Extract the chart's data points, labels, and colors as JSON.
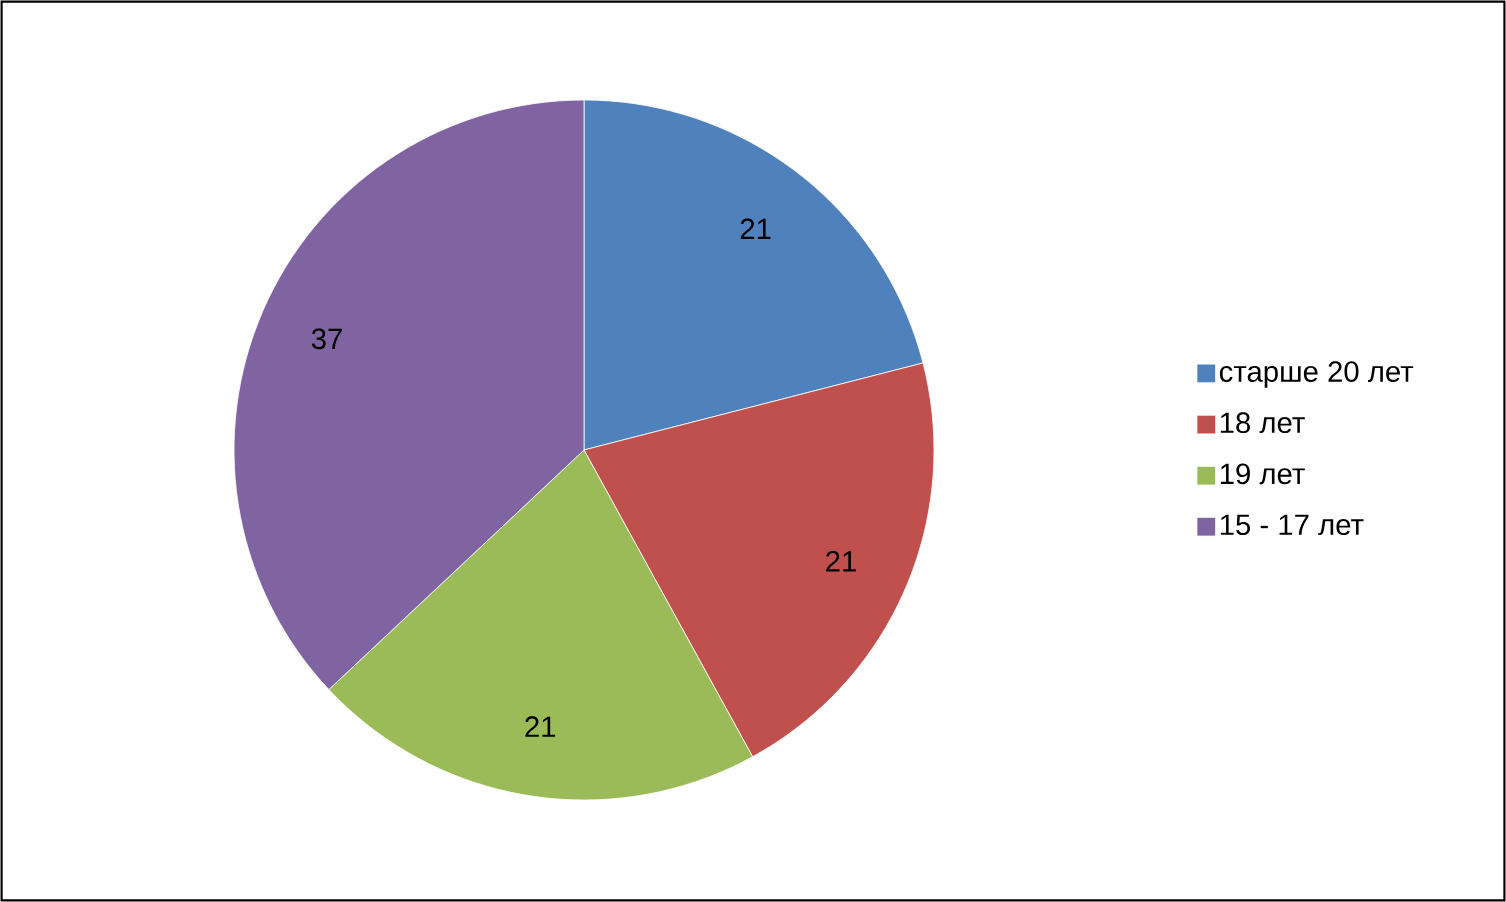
{
  "chart_data": {
    "type": "pie",
    "categories": [
      "старше 20 лет",
      "18 лет",
      "19 лет",
      "15 - 17 лет"
    ],
    "values": [
      21,
      21,
      21,
      37
    ],
    "colors": [
      "#4f81bd",
      "#c0504d",
      "#9bbb59",
      "#8064a2"
    ],
    "data_labels": true,
    "legend": "right"
  }
}
